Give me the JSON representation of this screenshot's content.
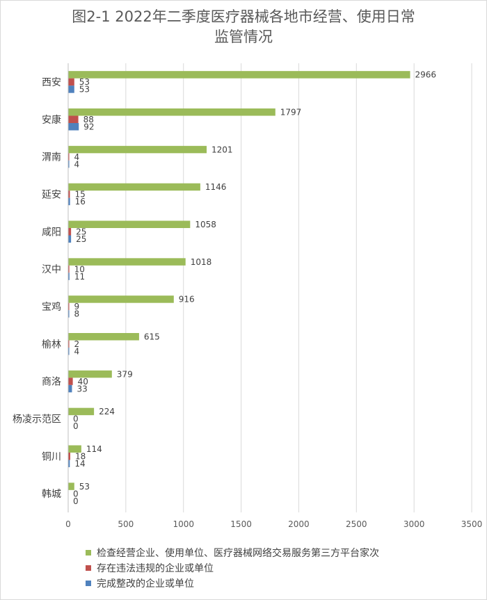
{
  "chart_data": {
    "type": "bar",
    "orientation": "horizontal",
    "title_line1": "图2-1  2022年二季度医疗器械各地市经营、使用日常",
    "title_line2": "监管情况",
    "categories": [
      "西安",
      "安康",
      "渭南",
      "延安",
      "咸阳",
      "汉中",
      "宝鸡",
      "榆林",
      "商洛",
      "杨凌示范区",
      "铜川",
      "韩城"
    ],
    "series": [
      {
        "name": "检查经营企业、使用单位、医疗器械网络交易服务第三方平台家次",
        "color": "#9bbb59",
        "values": [
          2966,
          1797,
          1201,
          1146,
          1058,
          1018,
          916,
          615,
          379,
          224,
          114,
          53
        ]
      },
      {
        "name": "存在违法违规的企业或单位",
        "color": "#c0504d",
        "values": [
          53,
          88,
          4,
          15,
          25,
          10,
          9,
          2,
          40,
          0,
          18,
          0
        ]
      },
      {
        "name": "完成整改的企业或单位",
        "color": "#4f81bd",
        "values": [
          53,
          92,
          4,
          16,
          25,
          11,
          8,
          4,
          33,
          0,
          14,
          0
        ]
      }
    ],
    "xlim": [
      0,
      3500
    ],
    "xticks": [
      0,
      500,
      1000,
      1500,
      2000,
      2500,
      3000,
      3500
    ],
    "grid": true,
    "legend_position": "bottom"
  }
}
